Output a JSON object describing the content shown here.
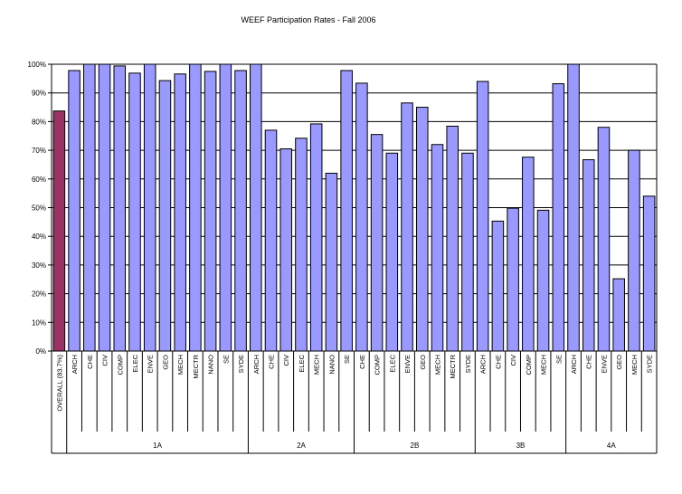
{
  "chart_data": {
    "type": "bar",
    "title": "WEEF Participation Rates - Fall 2006",
    "xlabel": "",
    "ylabel": "",
    "ylim": [
      0,
      100
    ],
    "yticks": [
      "0%",
      "10%",
      "20%",
      "30%",
      "40%",
      "50%",
      "60%",
      "70%",
      "80%",
      "90%",
      "100%"
    ],
    "grid": true,
    "legend": "none",
    "colors": {
      "overall": "#993366",
      "program": "#9999ff",
      "outline": "#000000",
      "grid": "#000000"
    },
    "groups": [
      {
        "label": "",
        "categories": [
          "OVERALL (83.7%)"
        ],
        "values": [
          83.7
        ]
      },
      {
        "label": "1A",
        "categories": [
          "ARCH",
          "CHE",
          "CIV",
          "COMP",
          "ELEC",
          "ENVE",
          "GEO",
          "MECH",
          "MECTR",
          "NANO",
          "SE",
          "SYDE"
        ],
        "values": [
          97.8,
          100,
          100,
          99.4,
          96.9,
          100,
          94.3,
          96.6,
          100,
          97.5,
          100,
          97.8
        ]
      },
      {
        "label": "2A",
        "categories": [
          "ARCH",
          "CHE",
          "CIV",
          "ELEC",
          "MECH",
          "NANO",
          "SE"
        ],
        "values": [
          100,
          77.0,
          70.5,
          74.2,
          79.2,
          62.0,
          97.8
        ]
      },
      {
        "label": "2B",
        "categories": [
          "CHE",
          "COMP",
          "ELEC",
          "ENVE",
          "GEO",
          "MECH",
          "MECTR",
          "SYDE"
        ],
        "values": [
          93.4,
          75.5,
          69.0,
          86.5,
          85.0,
          72.0,
          78.4,
          69.0
        ]
      },
      {
        "label": "3B",
        "categories": [
          "ARCH",
          "CHE",
          "CIV",
          "COMP",
          "MECH",
          "SE"
        ],
        "values": [
          94.0,
          45.3,
          49.8,
          67.6,
          49.1,
          93.2
        ]
      },
      {
        "label": "4A",
        "categories": [
          "ARCH",
          "CHE",
          "ENVE",
          "GEO",
          "MECH",
          "SYDE"
        ],
        "values": [
          100,
          66.7,
          78.0,
          25.2,
          70.0,
          54.0
        ]
      }
    ]
  }
}
